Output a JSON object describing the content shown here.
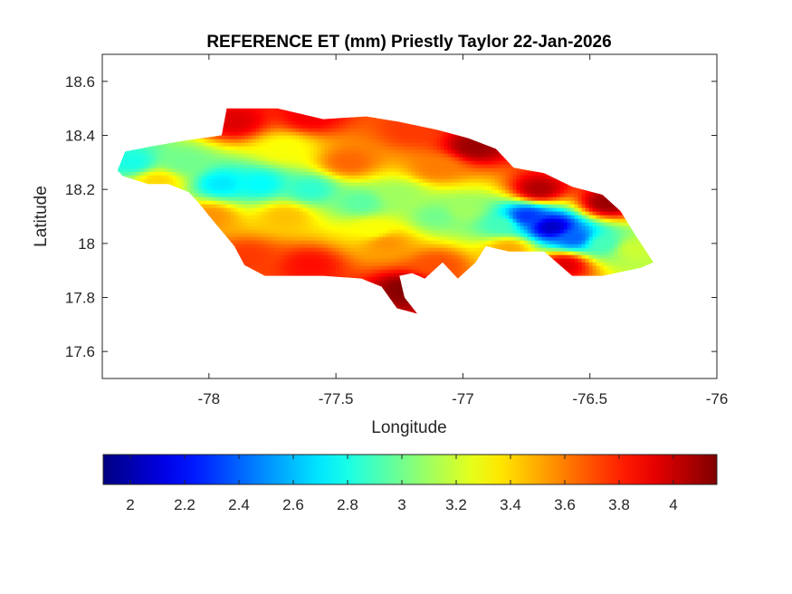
{
  "chart_data": {
    "type": "heatmap",
    "title": "REFERENCE ET (mm) Priestly Taylor 22-Jan-2026",
    "xlabel": "Longitude",
    "ylabel": "Latitude",
    "xlim": [
      -78.42,
      -76.0
    ],
    "ylim": [
      17.5,
      18.7
    ],
    "x_ticks": [
      -78,
      -77.5,
      -77,
      -76.5,
      -76
    ],
    "x_tick_labels": [
      "-78",
      "-77.5",
      "-77",
      "-76.5",
      "-76"
    ],
    "y_ticks": [
      17.6,
      17.8,
      18.0,
      18.2,
      18.4,
      18.6
    ],
    "y_tick_labels": [
      "17.6",
      "17.8",
      "18",
      "18.2",
      "18.4",
      "18.6"
    ],
    "colormap": "jet",
    "colorbar": {
      "location": "bottom",
      "range": [
        1.9,
        4.16
      ],
      "ticks": [
        2,
        2.2,
        2.4,
        2.6,
        2.8,
        3,
        3.2,
        3.4,
        3.6,
        3.8,
        4
      ],
      "tick_labels": [
        "2",
        "2.2",
        "2.4",
        "2.6",
        "2.8",
        "3",
        "3.2",
        "3.4",
        "3.6",
        "3.8",
        "4"
      ]
    },
    "region_outline": [
      [
        -78.36,
        18.27
      ],
      [
        -78.33,
        18.34
      ],
      [
        -78.22,
        18.36
      ],
      [
        -78.1,
        18.38
      ],
      [
        -77.95,
        18.4
      ],
      [
        -77.93,
        18.5
      ],
      [
        -77.73,
        18.5
      ],
      [
        -77.55,
        18.46
      ],
      [
        -77.38,
        18.47
      ],
      [
        -77.25,
        18.45
      ],
      [
        -77.1,
        18.42
      ],
      [
        -76.98,
        18.39
      ],
      [
        -76.87,
        18.35
      ],
      [
        -76.8,
        18.28
      ],
      [
        -76.68,
        18.26
      ],
      [
        -76.57,
        18.21
      ],
      [
        -76.45,
        18.18
      ],
      [
        -76.38,
        18.12
      ],
      [
        -76.32,
        18.03
      ],
      [
        -76.25,
        17.93
      ],
      [
        -76.3,
        17.91
      ],
      [
        -76.45,
        17.88
      ],
      [
        -76.57,
        17.88
      ],
      [
        -76.68,
        17.97
      ],
      [
        -76.82,
        17.97
      ],
      [
        -76.91,
        17.99
      ],
      [
        -76.95,
        17.93
      ],
      [
        -77.02,
        17.87
      ],
      [
        -77.08,
        17.93
      ],
      [
        -77.15,
        17.87
      ],
      [
        -77.2,
        17.89
      ],
      [
        -77.25,
        17.88
      ],
      [
        -77.23,
        17.8
      ],
      [
        -77.18,
        17.74
      ],
      [
        -77.26,
        17.76
      ],
      [
        -77.32,
        17.84
      ],
      [
        -77.4,
        17.87
      ],
      [
        -77.55,
        17.88
      ],
      [
        -77.65,
        17.88
      ],
      [
        -77.78,
        17.88
      ],
      [
        -77.86,
        17.92
      ],
      [
        -77.9,
        17.99
      ],
      [
        -77.98,
        18.08
      ],
      [
        -78.04,
        18.15
      ],
      [
        -78.08,
        18.19
      ],
      [
        -78.16,
        18.22
      ],
      [
        -78.24,
        18.22
      ],
      [
        -78.34,
        18.25
      ]
    ],
    "field_centers": [
      [
        -77.9,
        18.45,
        3.95
      ],
      [
        -77.6,
        18.47,
        3.9
      ],
      [
        -77.2,
        18.42,
        3.75
      ],
      [
        -76.95,
        18.36,
        4.1
      ],
      [
        -76.7,
        18.2,
        4.05
      ],
      [
        -76.43,
        18.15,
        4.1
      ],
      [
        -76.6,
        17.92,
        3.95
      ],
      [
        -77.22,
        17.83,
        4.15
      ],
      [
        -77.1,
        17.92,
        3.7
      ],
      [
        -77.6,
        17.92,
        3.85
      ],
      [
        -77.85,
        17.95,
        3.75
      ],
      [
        -78.0,
        18.1,
        3.55
      ],
      [
        -78.2,
        18.23,
        3.4
      ],
      [
        -78.3,
        18.3,
        2.8
      ],
      [
        -78.1,
        18.3,
        3.0
      ],
      [
        -77.95,
        18.22,
        2.7
      ],
      [
        -77.8,
        18.22,
        2.75
      ],
      [
        -77.6,
        18.2,
        2.85
      ],
      [
        -77.4,
        18.15,
        2.95
      ],
      [
        -77.25,
        18.18,
        3.1
      ],
      [
        -77.1,
        18.1,
        3.0
      ],
      [
        -77.0,
        18.12,
        3.1
      ],
      [
        -76.85,
        18.07,
        2.9
      ],
      [
        -76.75,
        18.1,
        2.3
      ],
      [
        -76.65,
        18.06,
        2.05
      ],
      [
        -76.56,
        18.02,
        2.4
      ],
      [
        -76.45,
        18.0,
        2.9
      ],
      [
        -76.33,
        17.98,
        3.2
      ],
      [
        -77.7,
        18.1,
        3.45
      ],
      [
        -77.45,
        18.3,
        3.65
      ],
      [
        -77.1,
        18.28,
        3.6
      ],
      [
        -77.3,
        18.0,
        3.55
      ],
      [
        -76.82,
        17.98,
        3.5
      ],
      [
        -77.7,
        18.35,
        3.3
      ],
      [
        -77.35,
        18.05,
        3.3
      ]
    ]
  }
}
